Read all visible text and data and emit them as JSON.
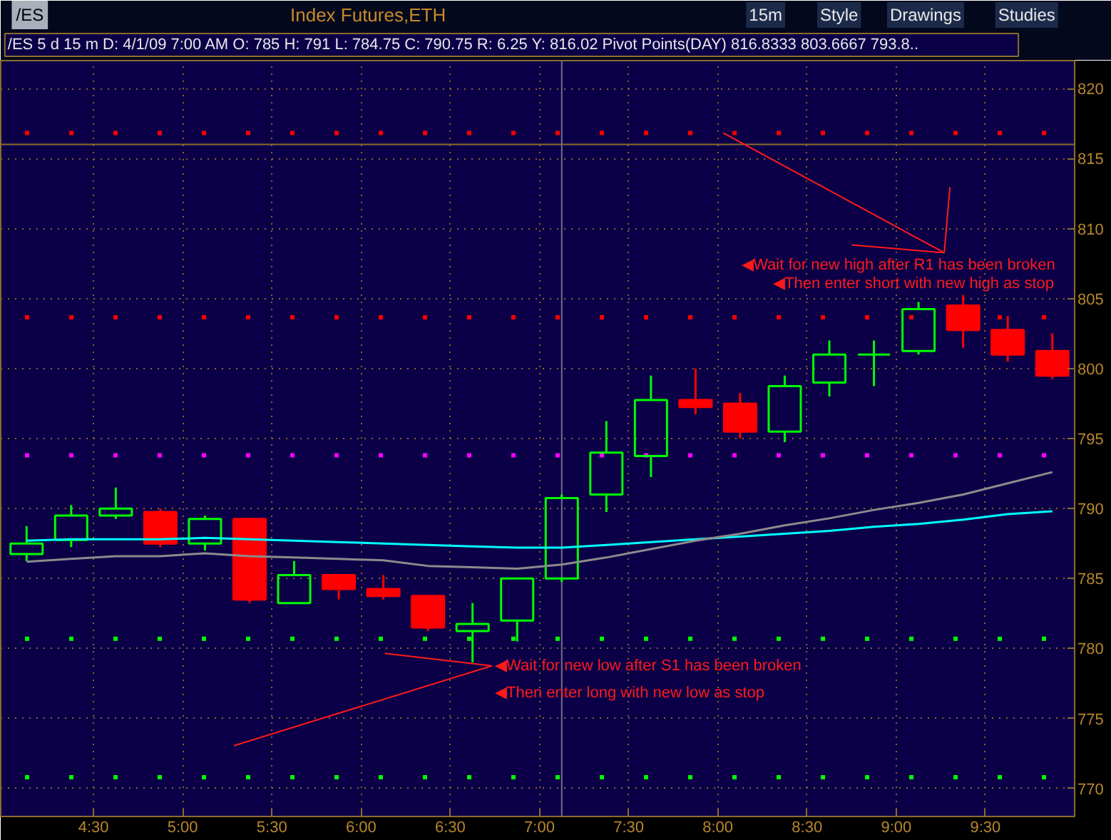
{
  "chart_data": {
    "type": "candlestick",
    "title": "Index Futures,ETH",
    "subtitle": "/ES 5 d 15 m   D: 4/1/09 7:00 AM   O: 785   H: 791   L: 784.75   C: 790.75   R: 6.25   Y: 816.02   Pivot Points(DAY)   816.8333   803.6667   793.8..",
    "x": [
      4.125,
      4.375,
      4.625,
      4.875,
      5.125,
      5.375,
      5.625,
      5.875,
      6.125,
      6.375,
      6.625,
      6.875,
      7.125,
      7.375,
      7.625,
      7.875,
      8.125,
      8.375,
      8.625,
      8.875,
      9.125,
      9.375,
      9.625,
      9.875
    ],
    "ohlc": [
      [
        786.75,
        788.75,
        786.25,
        787.5
      ],
      [
        787.75,
        790.25,
        787.25,
        789.5
      ],
      [
        789.5,
        791.5,
        789.25,
        790
      ],
      [
        789.75,
        790,
        787.25,
        787.5
      ],
      [
        787.5,
        789.5,
        787,
        789.25
      ],
      [
        789.25,
        789.25,
        783.25,
        783.5
      ],
      [
        783.25,
        786.25,
        783.25,
        785.25
      ],
      [
        785.25,
        785.25,
        783.5,
        784.25
      ],
      [
        784.25,
        785.25,
        783.5,
        783.75
      ],
      [
        783.75,
        783.75,
        781.25,
        781.5
      ],
      [
        781.25,
        783.25,
        779,
        781.75
      ],
      [
        782,
        785,
        780.5,
        785
      ],
      [
        785,
        791,
        784.75,
        790.75
      ],
      [
        791,
        796.25,
        789.75,
        794
      ],
      [
        793.75,
        799.5,
        792.25,
        797.75
      ],
      [
        797.75,
        800,
        796.75,
        797.25
      ],
      [
        797.5,
        798.25,
        795,
        795.5
      ],
      [
        795.5,
        799.5,
        794.75,
        798.75
      ],
      [
        799,
        802,
        798,
        801
      ],
      [
        801,
        802,
        798.75,
        801
      ],
      [
        801.25,
        804.75,
        801,
        804.25
      ],
      [
        804.5,
        805.25,
        801.5,
        802.75
      ],
      [
        802.75,
        803.75,
        800.5,
        801
      ],
      [
        801.25,
        802.5,
        799.25,
        799.5
      ]
    ],
    "colors": [
      "#00ff00",
      "#00ff00",
      "#00ff00",
      "#ff0000",
      "#00ff00",
      "#ff0000",
      "#00ff00",
      "#ff0000",
      "#ff0000",
      "#ff0000",
      "#00ff00",
      "#00ff00",
      "#00ff00",
      "#00ff00",
      "#00ff00",
      "#ff0000",
      "#ff0000",
      "#00ff00",
      "#00ff00",
      "#00ff00",
      "#00ff00",
      "#ff0000",
      "#ff0000",
      "#ff0000"
    ],
    "series": [
      {
        "type": "line",
        "color": "#00ffff",
        "values": [
          787.7,
          787.8,
          787.8,
          787.8,
          787.9,
          787.8,
          787.7,
          787.6,
          787.5,
          787.4,
          787.3,
          787.2,
          787.2,
          787.4,
          787.6,
          787.8,
          788.0,
          788.2,
          788.4,
          788.7,
          788.9,
          789.2,
          789.6,
          789.8
        ]
      },
      {
        "type": "line",
        "color": "#8c8c8c",
        "values": [
          786.2,
          786.4,
          786.6,
          786.6,
          786.8,
          786.6,
          786.5,
          786.4,
          786.3,
          785.9,
          785.8,
          785.7,
          786.0,
          786.5,
          787.1,
          787.7,
          788.2,
          788.8,
          789.3,
          789.9,
          790.4,
          791.0,
          791.8,
          792.6
        ]
      }
    ],
    "xlim": [
      3.98,
      10.0
    ],
    "xticks": [
      {
        "value": 4.5,
        "label": "4:30"
      },
      {
        "value": 5,
        "label": "5:00"
      },
      {
        "value": 5.5,
        "label": "5:30"
      },
      {
        "value": 6,
        "label": "6:00"
      },
      {
        "value": 6.5,
        "label": "6:30"
      },
      {
        "value": 7,
        "label": "7:00"
      },
      {
        "value": 7.5,
        "label": "7:30"
      },
      {
        "value": 8,
        "label": "8:00"
      },
      {
        "value": 8.5,
        "label": "8:30"
      },
      {
        "value": 9,
        "label": "9:00"
      },
      {
        "value": 9.5,
        "label": "9:30"
      }
    ],
    "ylim": [
      768,
      822
    ],
    "yticks": [
      770,
      775,
      780,
      785,
      790,
      795,
      800,
      805,
      810,
      815,
      820
    ],
    "grid": true,
    "ref_lines": [
      {
        "axis": "y",
        "value": 816.8333,
        "color": "#ff0000",
        "line_style": "dotted"
      },
      {
        "axis": "y",
        "value": 816.02,
        "color": "#8c6c2c",
        "line_style": "solid"
      },
      {
        "axis": "y",
        "value": 803.6667,
        "color": "#ff0000",
        "line_style": "dotted"
      },
      {
        "axis": "y",
        "value": 793.8,
        "color": "#ff00ff",
        "line_style": "dotted"
      },
      {
        "axis": "y",
        "value": 780.7,
        "color": "#00ff00",
        "line_style": "dotted"
      },
      {
        "axis": "y",
        "value": 770.8,
        "color": "#00ff00",
        "line_style": "dotted"
      },
      {
        "axis": "x",
        "value": 7.125,
        "color": "#70708a",
        "line_style": "solid"
      }
    ],
    "annotations": [
      "/ES",
      "15m",
      "Style",
      "Drawings",
      "Studies",
      {
        "text": "◀Wait for new high after R1 has been broken",
        "x": 8.03,
        "y": 816.8333
      },
      "◀Then enter short with new high as stop",
      {
        "text": "◀Wait for new low after S1 has been broken",
        "x": 6.625,
        "y": 779
      },
      "◀Then enter long with new low as stop"
    ]
  }
}
